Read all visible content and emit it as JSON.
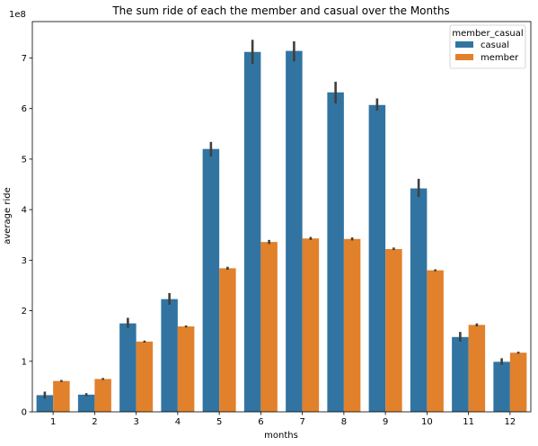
{
  "chart_data": {
    "type": "bar",
    "title": "The sum ride of each the member and casual over the Months",
    "xlabel": "months",
    "ylabel": "average ride",
    "y_offset_label": "1e8",
    "y_scale": 100000000,
    "ylim": [
      0,
      772000000
    ],
    "y_ticks": [
      0,
      100000000,
      200000000,
      300000000,
      400000000,
      500000000,
      600000000,
      700000000
    ],
    "y_tick_labels": [
      "0",
      "1",
      "2",
      "3",
      "4",
      "5",
      "6",
      "7"
    ],
    "categories": [
      "1",
      "2",
      "3",
      "4",
      "5",
      "6",
      "7",
      "8",
      "9",
      "10",
      "11",
      "12"
    ],
    "legend": {
      "title": "member_casual",
      "position": "top-right"
    },
    "grid": false,
    "series": [
      {
        "name": "casual",
        "color": "#3274a1",
        "values": [
          33000000,
          34000000,
          175000000,
          223000000,
          520000000,
          712000000,
          714000000,
          632000000,
          607000000,
          442000000,
          148000000,
          99000000
        ],
        "err_low": [
          26000000,
          31000000,
          166000000,
          212000000,
          505000000,
          688000000,
          693000000,
          610000000,
          596000000,
          425000000,
          139000000,
          93000000
        ],
        "err_high": [
          40000000,
          37000000,
          186000000,
          235000000,
          534000000,
          736000000,
          733000000,
          653000000,
          620000000,
          461000000,
          158000000,
          106000000
        ]
      },
      {
        "name": "member",
        "color": "#e1812c",
        "values": [
          61000000,
          65000000,
          139000000,
          169000000,
          284000000,
          336000000,
          343000000,
          342000000,
          322000000,
          280000000,
          172000000,
          117000000
        ],
        "err_low": [
          59000000,
          63000000,
          137000000,
          167000000,
          281000000,
          332000000,
          340000000,
          339000000,
          320000000,
          278000000,
          169000000,
          115000000
        ],
        "err_high": [
          63000000,
          67000000,
          141000000,
          171000000,
          287000000,
          340000000,
          346000000,
          345000000,
          325000000,
          282000000,
          175000000,
          119000000
        ]
      }
    ]
  }
}
